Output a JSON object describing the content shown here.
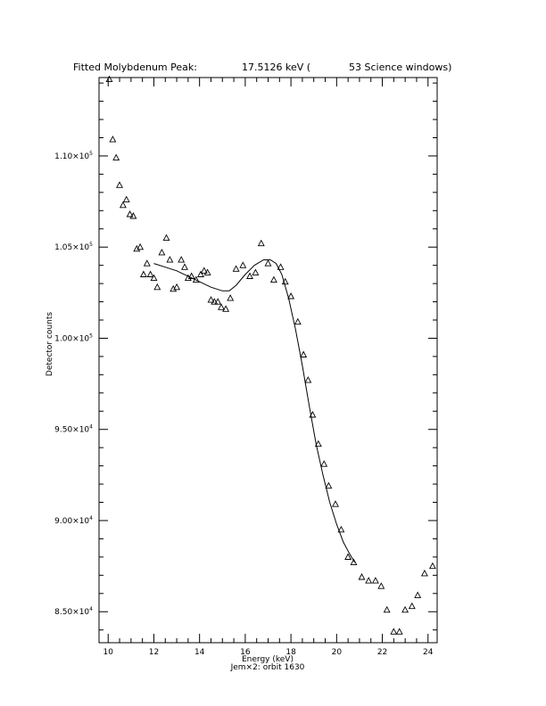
{
  "chart_data": {
    "type": "scatter",
    "title": {
      "left": "Fitted Molybdenum Peak:",
      "middle": "17.5126 keV (",
      "right": "53 Science windows)"
    },
    "xlabel": "Energy (keV)",
    "ylabel": "Detector counts",
    "caption": "Jem×2: orbit 1630",
    "xlim": [
      9.6,
      24.4
    ],
    "ylim": [
      83300,
      114300
    ],
    "x_ticks": [
      10,
      12,
      14,
      16,
      18,
      20,
      22,
      24
    ],
    "x_tick_labels": [
      "10",
      "12",
      "14",
      "16",
      "18",
      "20",
      "22",
      "24"
    ],
    "y_ticks": [
      85000,
      90000,
      95000,
      100000,
      105000,
      110000
    ],
    "y_tick_labels": [
      {
        "mantissa": "8.50×10",
        "exp": "4"
      },
      {
        "mantissa": "9.00×10",
        "exp": "4"
      },
      {
        "mantissa": "9.50×10",
        "exp": "4"
      },
      {
        "mantissa": "1.00×10",
        "exp": "5"
      },
      {
        "mantissa": "1.05×10",
        "exp": "5"
      },
      {
        "mantissa": "1.10×10",
        "exp": "5"
      }
    ],
    "grid": false,
    "series": [
      {
        "kind": "data",
        "marker": "triangle",
        "points": [
          [
            10.05,
            114200
          ],
          [
            10.2,
            110900
          ],
          [
            10.35,
            109900
          ],
          [
            10.5,
            108400
          ],
          [
            10.65,
            107300
          ],
          [
            10.8,
            107600
          ],
          [
            10.95,
            106800
          ],
          [
            11.1,
            106700
          ],
          [
            11.25,
            104900
          ],
          [
            11.4,
            105000
          ],
          [
            11.55,
            103500
          ],
          [
            11.7,
            104100
          ],
          [
            11.85,
            103500
          ],
          [
            12.0,
            103300
          ],
          [
            12.15,
            102800
          ],
          [
            12.35,
            104700
          ],
          [
            12.55,
            105500
          ],
          [
            12.7,
            104300
          ],
          [
            12.85,
            102700
          ],
          [
            13.0,
            102800
          ],
          [
            13.2,
            104300
          ],
          [
            13.35,
            103900
          ],
          [
            13.5,
            103300
          ],
          [
            13.65,
            103400
          ],
          [
            13.85,
            103200
          ],
          [
            14.05,
            103500
          ],
          [
            14.2,
            103700
          ],
          [
            14.35,
            103600
          ],
          [
            14.5,
            102100
          ],
          [
            14.65,
            102000
          ],
          [
            14.8,
            102000
          ],
          [
            14.95,
            101700
          ],
          [
            15.15,
            101600
          ],
          [
            15.35,
            102200
          ],
          [
            15.6,
            103800
          ],
          [
            15.9,
            104000
          ],
          [
            16.2,
            103400
          ],
          [
            16.45,
            103600
          ],
          [
            16.7,
            105200
          ],
          [
            17.0,
            104100
          ],
          [
            17.25,
            103200
          ],
          [
            17.55,
            103900
          ],
          [
            17.75,
            103100
          ],
          [
            18.0,
            102300
          ],
          [
            18.3,
            100900
          ],
          [
            18.55,
            99100
          ],
          [
            18.75,
            97700
          ],
          [
            18.95,
            95800
          ],
          [
            19.2,
            94200
          ],
          [
            19.45,
            93100
          ],
          [
            19.65,
            91900
          ],
          [
            19.95,
            90900
          ],
          [
            20.2,
            89500
          ],
          [
            20.5,
            88000
          ],
          [
            20.75,
            87700
          ],
          [
            21.1,
            86900
          ],
          [
            21.4,
            86700
          ],
          [
            21.7,
            86700
          ],
          [
            21.95,
            86400
          ],
          [
            22.2,
            85100
          ],
          [
            22.5,
            83900
          ],
          [
            22.75,
            83900
          ],
          [
            23.0,
            85100
          ],
          [
            23.3,
            85300
          ],
          [
            23.55,
            85900
          ],
          [
            23.85,
            87100
          ],
          [
            24.2,
            87500
          ]
        ]
      },
      {
        "kind": "fit",
        "style": "line",
        "points": [
          [
            12.0,
            104100
          ],
          [
            12.5,
            103900
          ],
          [
            13.0,
            103700
          ],
          [
            13.5,
            103400
          ],
          [
            14.0,
            103100
          ],
          [
            14.5,
            102800
          ],
          [
            15.0,
            102600
          ],
          [
            15.3,
            102600
          ],
          [
            15.6,
            102900
          ],
          [
            16.0,
            103500
          ],
          [
            16.4,
            104000
          ],
          [
            16.8,
            104300
          ],
          [
            17.1,
            104300
          ],
          [
            17.35,
            104100
          ],
          [
            17.6,
            103500
          ],
          [
            17.9,
            102200
          ],
          [
            18.2,
            100500
          ],
          [
            18.5,
            98500
          ],
          [
            18.8,
            96300
          ],
          [
            19.1,
            94200
          ],
          [
            19.4,
            92500
          ],
          [
            19.7,
            91000
          ],
          [
            20.0,
            89800
          ],
          [
            20.3,
            88800
          ],
          [
            20.6,
            88100
          ],
          [
            20.8,
            87700
          ]
        ]
      }
    ]
  }
}
